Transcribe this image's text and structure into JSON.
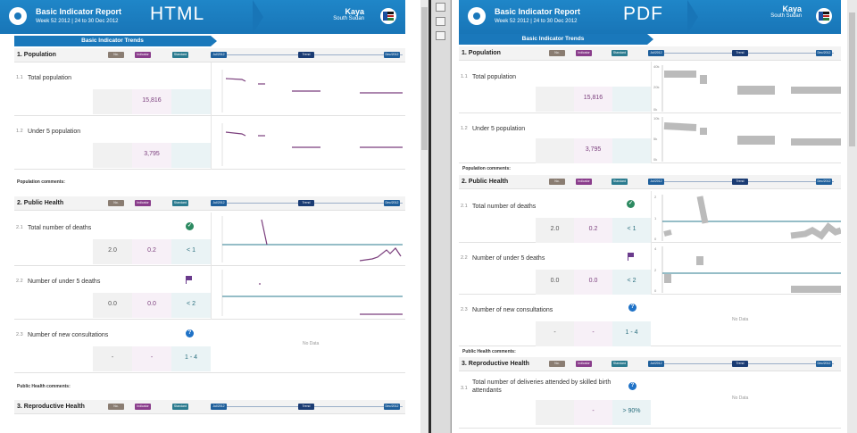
{
  "report": {
    "title": "Basic Indicator Report",
    "subtitle": "Week 52 2012 | 24 to 30 Dec 2012",
    "location": "Kaya",
    "country": "South Sudan",
    "trends_label": "Basic Indicator Trends",
    "pill_no": "No.",
    "pill_indicator": "Indicator",
    "pill_standard": "Standard",
    "pill_start": "Jul/2012",
    "pill_trend": "Trend",
    "pill_end": "Dec/2012",
    "no_data": "No Data"
  },
  "left": {
    "format_label": "HTML",
    "sections": [
      {
        "num": "1.",
        "title": "Population"
      },
      {
        "num": "2.",
        "title": "Public Health"
      },
      {
        "num": "3.",
        "title": "Reproductive Health"
      }
    ],
    "rows": [
      {
        "num": "1.1",
        "label": "Total population",
        "no": "",
        "indicator": "15,816",
        "standard": ""
      },
      {
        "num": "1.2",
        "label": "Under 5 population",
        "no": "",
        "indicator": "3,795",
        "standard": ""
      },
      {
        "num": "2.1",
        "label": "Total number of deaths",
        "no": "2.0",
        "indicator": "0.2",
        "standard": "< 1"
      },
      {
        "num": "2.2",
        "label": "Number of under 5 deaths",
        "no": "0.0",
        "indicator": "0.0",
        "standard": "< 2"
      },
      {
        "num": "2.3",
        "label": "Number of new consultations",
        "no": "-",
        "indicator": "-",
        "standard": "1 - 4"
      }
    ],
    "comments": [
      "Population comments:",
      "Public Health comments:"
    ]
  },
  "right": {
    "format_label": "PDF",
    "sections": [
      {
        "num": "1.",
        "title": "Population"
      },
      {
        "num": "2.",
        "title": "Public Health"
      },
      {
        "num": "3.",
        "title": "Reproductive Health"
      }
    ],
    "rows": [
      {
        "num": "1.1",
        "label": "Total population",
        "no": "",
        "indicator": "15,816",
        "standard": ""
      },
      {
        "num": "1.2",
        "label": "Under 5 population",
        "no": "",
        "indicator": "3,795",
        "standard": ""
      },
      {
        "num": "2.1",
        "label": "Total number of deaths",
        "no": "2.0",
        "indicator": "0.2",
        "standard": "< 1"
      },
      {
        "num": "2.2",
        "label": "Number of under 5 deaths",
        "no": "0.0",
        "indicator": "0.0",
        "standard": "< 2"
      },
      {
        "num": "2.3",
        "label": "Number of new consultations",
        "no": "-",
        "indicator": "-",
        "standard": "1 - 4"
      },
      {
        "num": "3.1",
        "label": "Total number of deliveries attended by skilled birth attendants",
        "no": "",
        "indicator": "-",
        "standard": "> 90%"
      }
    ],
    "comments": [
      "Population comments:",
      "Public Health comments:"
    ],
    "ticks": {
      "pop_top": "40k",
      "pop_mid": "20k",
      "pop_bot": "0k",
      "u5_top": "10k",
      "u5_mid": "5k",
      "u5_bot": "0k",
      "d_top": "2",
      "d_mid": "1",
      "d_bot": "0",
      "u5d_top": "4",
      "u5d_mid": "2",
      "u5d_bot": "0"
    }
  },
  "colors": {
    "brand_blue": "#1a78bb",
    "indicator_purple": "#8a3e8c",
    "standard_teal": "#2b7b8f",
    "ok_green": "#2d8a61"
  }
}
